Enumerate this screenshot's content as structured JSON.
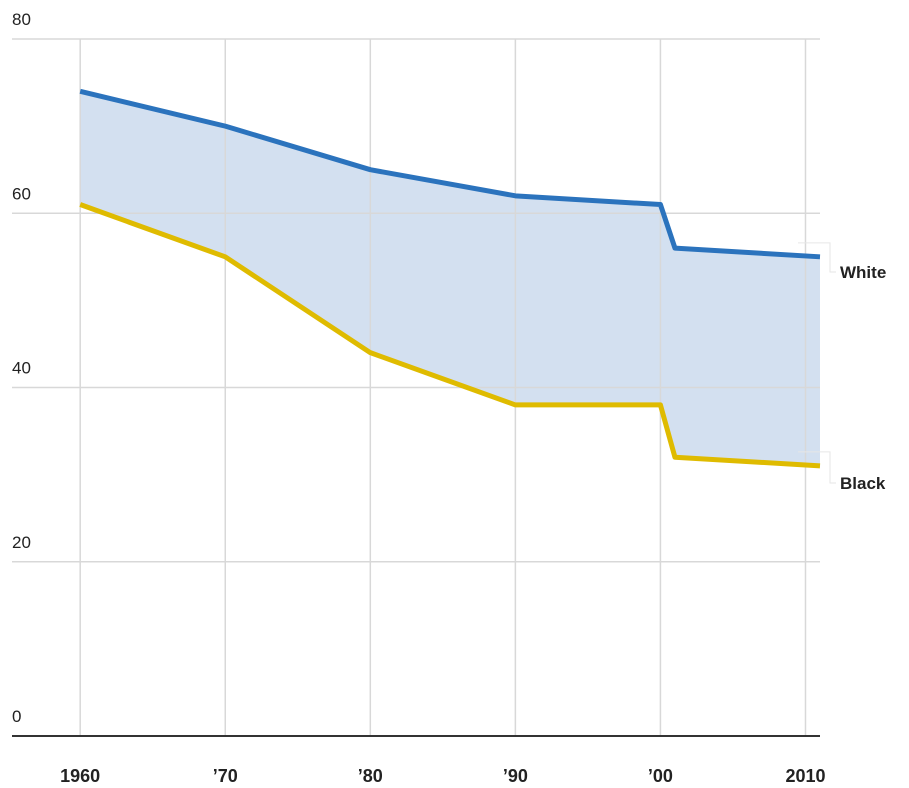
{
  "chart_data": {
    "type": "line",
    "x": [
      1960,
      1970,
      1980,
      1990,
      2000,
      2001,
      2011
    ],
    "series": [
      {
        "name": "White",
        "color": "#2b73bd",
        "values": [
          74,
          70,
          65,
          62,
          61,
          56,
          55
        ]
      },
      {
        "name": "Black",
        "color": "#dfbb00",
        "values": [
          61,
          55,
          44,
          38,
          38,
          32,
          31
        ]
      }
    ],
    "fill_between_color": "#d3e0f0",
    "xlim": [
      1955.3,
      2011
    ],
    "xticks": [
      1960,
      {
        "value": 1970,
        "label": "’70"
      },
      {
        "value": 1980,
        "label": "’80"
      },
      {
        "value": 1990,
        "label": "’90"
      },
      {
        "value": 2000,
        "label": "’00"
      },
      2010
    ],
    "ylim": [
      0,
      80
    ],
    "yticks": [
      0,
      20,
      40,
      60,
      80
    ],
    "grid": true
  }
}
